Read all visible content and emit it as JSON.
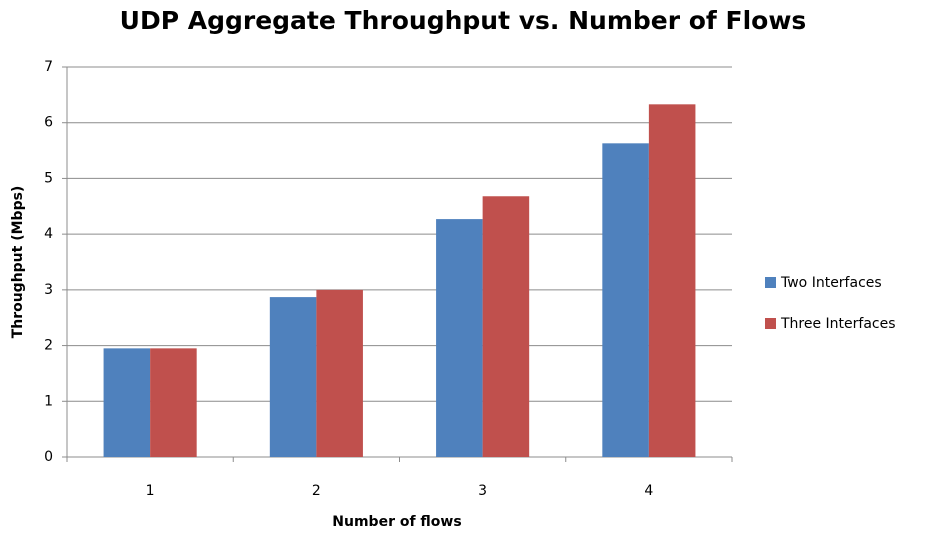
{
  "chart_data": {
    "type": "bar",
    "title": "UDP Aggregate Throughput  vs. Number of Flows",
    "x_label": "Number of flows",
    "y_label": "Throughput (Mbps)",
    "categories": [
      "1",
      "2",
      "3",
      "4"
    ],
    "series": [
      {
        "name": "Two Interfaces",
        "color": "#4f81bd",
        "values": [
          1.95,
          2.87,
          4.27,
          5.63
        ]
      },
      {
        "name": "Three Interfaces",
        "color": "#c0504d",
        "values": [
          1.95,
          3.0,
          4.68,
          6.33
        ]
      }
    ],
    "ylim": [
      0,
      7
    ],
    "yticks": [
      0,
      1,
      2,
      3,
      4,
      5,
      6,
      7
    ],
    "grid": true,
    "legend": "right"
  }
}
